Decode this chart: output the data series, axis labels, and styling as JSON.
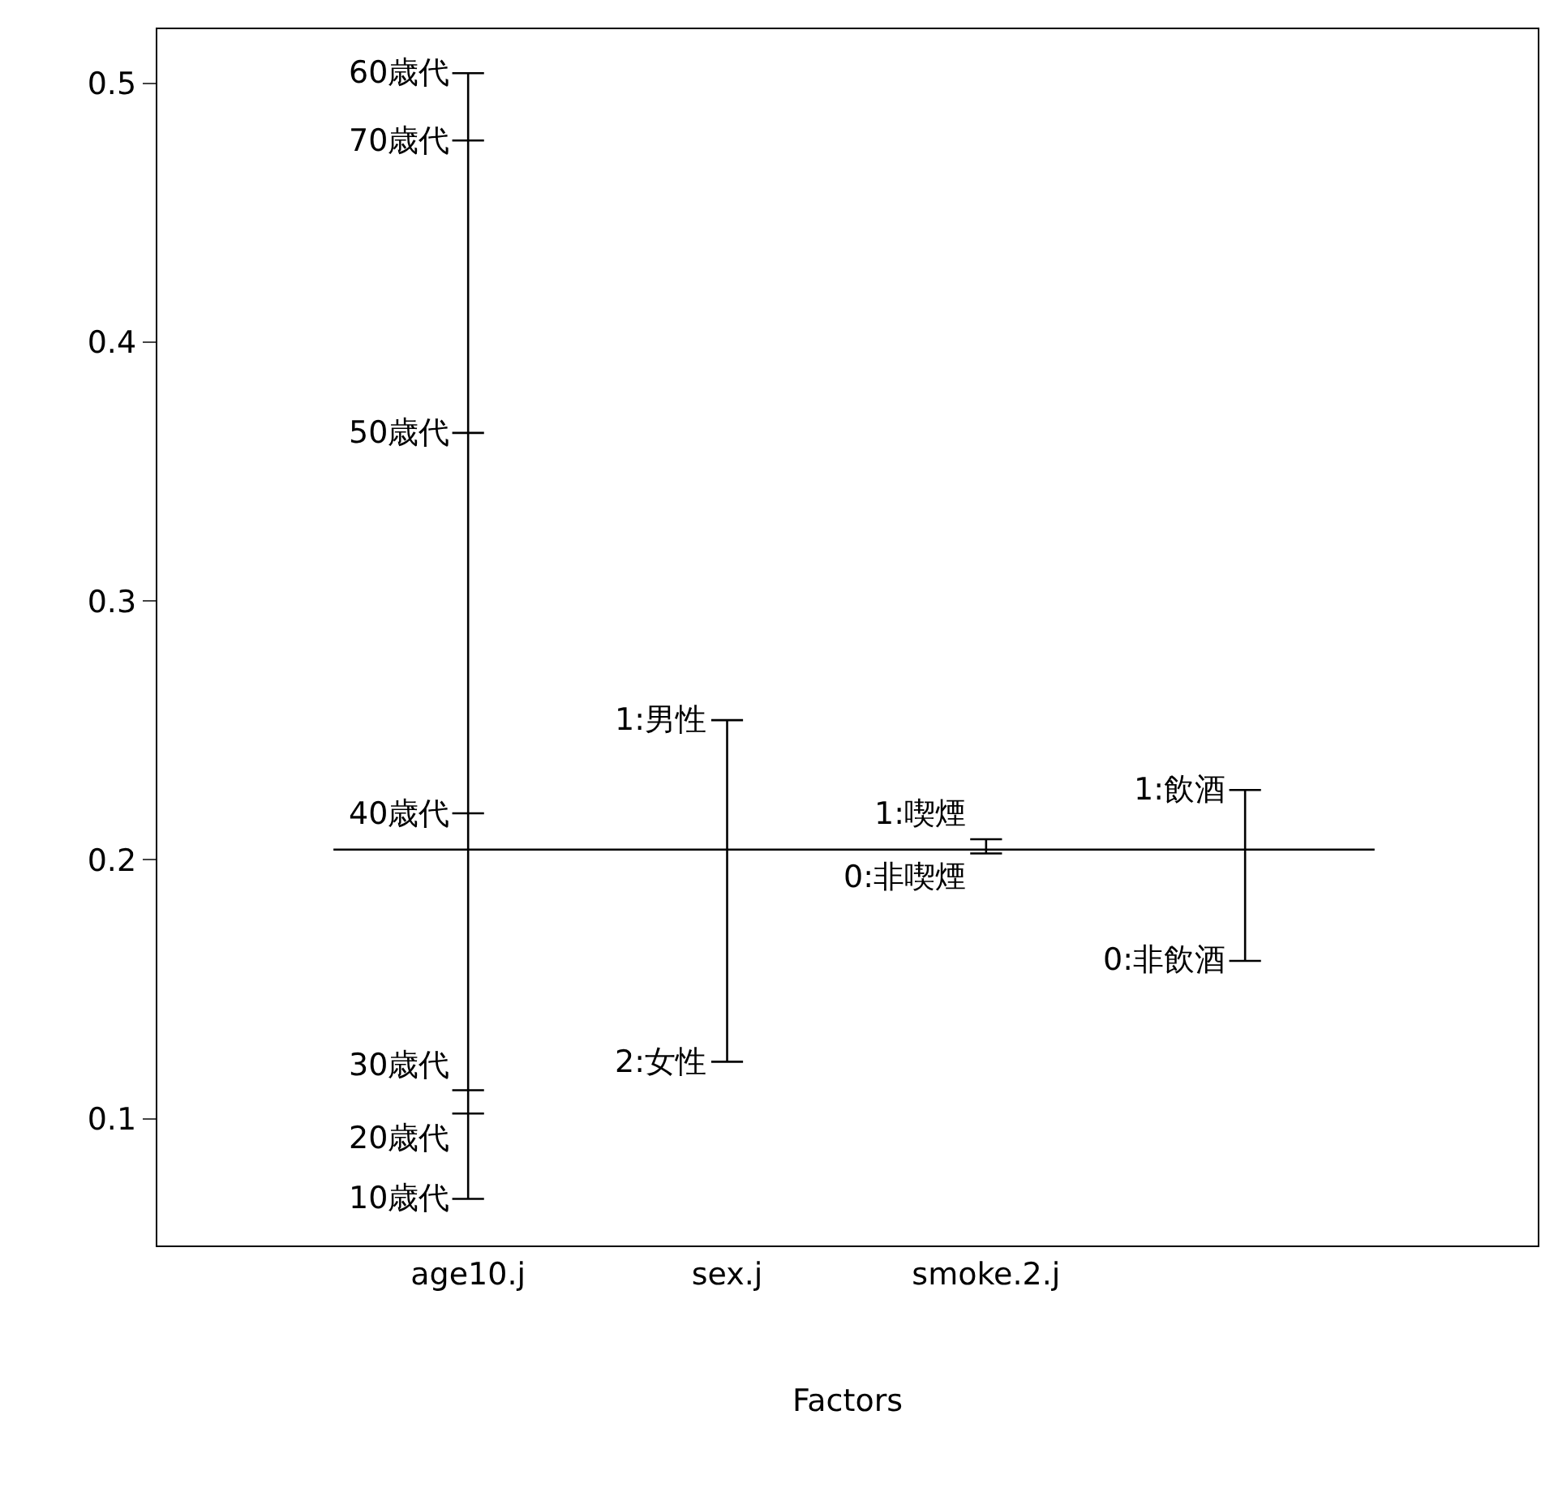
{
  "chart_data": {
    "type": "line",
    "xlabel": "Factors",
    "categories": [
      "age10.j",
      "sex.j",
      "smoke.2.j",
      null
    ],
    "ylim": [
      0.051,
      0.521
    ],
    "yticks": [
      0.1,
      0.2,
      0.3,
      0.4,
      0.5
    ],
    "series": [
      {
        "color": "#000000",
        "x": [
          "age10.j",
          "age10.j",
          "age10.j",
          "age10.j",
          "age10.j",
          "age10.j",
          "age10.j"
        ],
        "values": [
          0.504,
          0.478,
          0.365,
          0.218,
          0.111,
          0.102,
          0.069
        ]
      },
      {
        "color": "#000000",
        "x": [
          "sex.j",
          "sex.j"
        ],
        "values": [
          0.254,
          0.122
        ]
      },
      {
        "color": "#000000",
        "x": [
          "smoke.2.j",
          "smoke.2.j"
        ],
        "values": [
          0.208,
          0.2025
        ]
      },
      {
        "color": "#000000",
        "x": [
          null,
          null
        ],
        "values": [
          0.227,
          0.161
        ]
      }
    ],
    "ref_lines": [
      {
        "axis": "y",
        "value": 0.204,
        "color": "#000000"
      }
    ],
    "annotations": [
      {
        "text": "60歳代",
        "x": "age10.j",
        "y": 0.504
      },
      {
        "text": "70歳代",
        "x": "age10.j",
        "y": 0.478
      },
      {
        "text": "50歳代",
        "x": "age10.j",
        "y": 0.365
      },
      {
        "text": "40歳代",
        "x": "age10.j",
        "y": 0.218
      },
      {
        "text": "30歳代",
        "x": "age10.j",
        "y": 0.111
      },
      {
        "text": "20歳代",
        "x": "age10.j",
        "y": 0.102
      },
      {
        "text": "10歳代",
        "x": "age10.j",
        "y": 0.069
      },
      {
        "text": "1:男性",
        "x": "sex.j",
        "y": 0.254
      },
      {
        "text": "2:女性",
        "x": "sex.j",
        "y": 0.122
      },
      {
        "text": "1:喫煙",
        "x": "smoke.2.j",
        "y": 0.208
      },
      {
        "text": "0:非喫煙",
        "x": "smoke.2.j",
        "y": 0.2025
      },
      "1:飲酒",
      "0:非飲酒"
    ],
    "grid": false
  }
}
